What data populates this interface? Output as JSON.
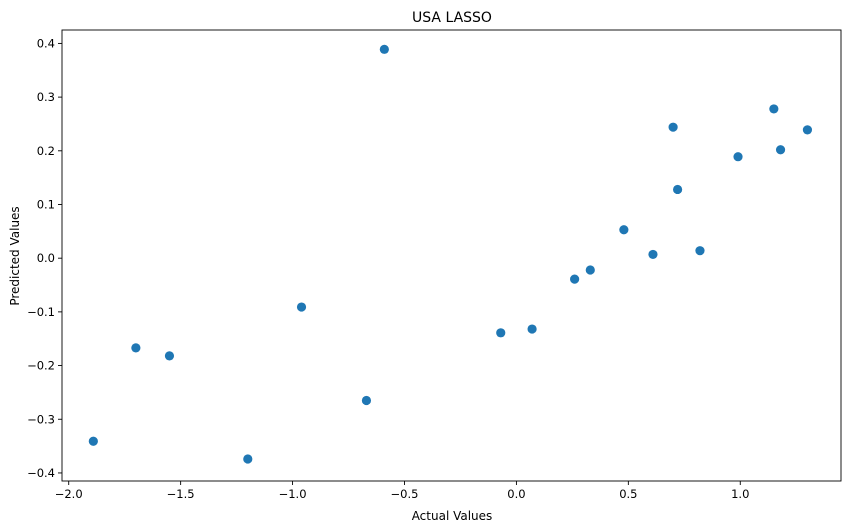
{
  "chart_data": {
    "type": "scatter",
    "title": "USA LASSO",
    "xlabel": "Actual Values",
    "ylabel": "Predicted Values",
    "xlim": [
      -2.03,
      1.45
    ],
    "ylim": [
      -0.415,
      0.425
    ],
    "x_ticks": [
      -2.0,
      -1.5,
      -1.0,
      -0.5,
      0.0,
      0.5,
      1.0
    ],
    "x_tick_labels": [
      "−2.0",
      "−1.5",
      "−1.0",
      "−0.5",
      "0.0",
      "0.5",
      "1.0"
    ],
    "y_ticks": [
      -0.4,
      -0.3,
      -0.2,
      -0.1,
      0.0,
      0.1,
      0.2,
      0.3,
      0.4
    ],
    "y_tick_labels": [
      "−0.4",
      "−0.3",
      "−0.2",
      "−0.1",
      "0.0",
      "0.1",
      "0.2",
      "0.3",
      "0.4"
    ],
    "grid": false,
    "marker_color": "#1f77b4",
    "series": [
      {
        "points": [
          {
            "x": -1.89,
            "y": -0.341
          },
          {
            "x": -1.7,
            "y": -0.167
          },
          {
            "x": -1.55,
            "y": -0.182
          },
          {
            "x": -1.2,
            "y": -0.374
          },
          {
            "x": -0.96,
            "y": -0.091
          },
          {
            "x": -0.67,
            "y": -0.265
          },
          {
            "x": -0.59,
            "y": 0.389
          },
          {
            "x": -0.07,
            "y": -0.139
          },
          {
            "x": 0.07,
            "y": -0.132
          },
          {
            "x": 0.26,
            "y": -0.039
          },
          {
            "x": 0.33,
            "y": -0.022
          },
          {
            "x": 0.48,
            "y": 0.053
          },
          {
            "x": 0.61,
            "y": 0.007
          },
          {
            "x": 0.7,
            "y": 0.244
          },
          {
            "x": 0.72,
            "y": 0.128
          },
          {
            "x": 0.82,
            "y": 0.014
          },
          {
            "x": 0.99,
            "y": 0.189
          },
          {
            "x": 1.15,
            "y": 0.278
          },
          {
            "x": 1.18,
            "y": 0.202
          },
          {
            "x": 1.3,
            "y": 0.239
          }
        ]
      }
    ]
  }
}
